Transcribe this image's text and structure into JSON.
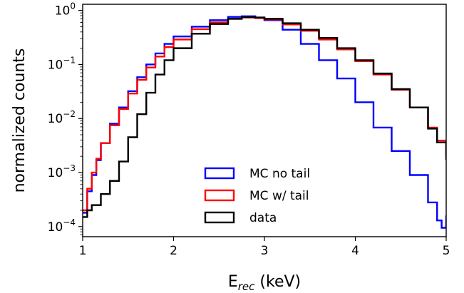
{
  "chart_data": {
    "type": "line",
    "drawstyle": "steps",
    "xlabel_main": "E",
    "xlabel_sub": "rec",
    "xlabel_unit": " (keV)",
    "ylabel": "normalized counts",
    "xlim": [
      1,
      5
    ],
    "ylim": [
      6.5e-05,
      1.3
    ],
    "yscale": "log",
    "grid": false,
    "legend_position": "lower-center",
    "x_ticks": [
      {
        "value": 1,
        "label": "1"
      },
      {
        "value": 2,
        "label": "2"
      },
      {
        "value": 3,
        "label": "3"
      },
      {
        "value": 4,
        "label": "4"
      },
      {
        "value": 5,
        "label": "5"
      }
    ],
    "y_ticks": [
      {
        "value": 1,
        "base": "10",
        "exp": "0"
      },
      {
        "value": 0.1,
        "base": "10",
        "exp": "−1"
      },
      {
        "value": 0.01,
        "base": "10",
        "exp": "−2"
      },
      {
        "value": 0.001,
        "base": "10",
        "exp": "−3"
      },
      {
        "value": 0.0001,
        "base": "10",
        "exp": "−4"
      }
    ],
    "series": [
      {
        "name": "MC no tail",
        "color": "#0000ff",
        "x": [
          1.0,
          1.05,
          1.1,
          1.15,
          1.2,
          1.3,
          1.4,
          1.5,
          1.6,
          1.7,
          1.8,
          1.9,
          2.0,
          2.2,
          2.4,
          2.6,
          2.75,
          2.9,
          3.0,
          3.2,
          3.4,
          3.6,
          3.8,
          4.0,
          4.2,
          4.4,
          4.6,
          4.8,
          4.9,
          4.95,
          5.0
        ],
        "y": [
          0.00018,
          0.00045,
          0.0009,
          0.0017,
          0.0035,
          0.008,
          0.016,
          0.032,
          0.058,
          0.1,
          0.16,
          0.24,
          0.33,
          0.5,
          0.66,
          0.76,
          0.78,
          0.74,
          0.66,
          0.44,
          0.24,
          0.12,
          0.055,
          0.02,
          0.0068,
          0.0025,
          0.0009,
          0.00028,
          0.00013,
          9.5e-05,
          0.00016
        ]
      },
      {
        "name": "MC w/ tail",
        "color": "#ff0000",
        "x": [
          1.0,
          1.05,
          1.1,
          1.15,
          1.2,
          1.3,
          1.4,
          1.5,
          1.6,
          1.7,
          1.8,
          1.9,
          2.0,
          2.2,
          2.4,
          2.6,
          2.75,
          2.9,
          3.0,
          3.2,
          3.4,
          3.6,
          3.8,
          4.0,
          4.2,
          4.4,
          4.6,
          4.8,
          4.9,
          5.0
        ],
        "y": [
          0.0002,
          0.0005,
          0.001,
          0.0018,
          0.0035,
          0.0075,
          0.015,
          0.029,
          0.052,
          0.088,
          0.14,
          0.21,
          0.29,
          0.45,
          0.6,
          0.7,
          0.74,
          0.72,
          0.68,
          0.55,
          0.42,
          0.29,
          0.19,
          0.115,
          0.065,
          0.034,
          0.016,
          0.0068,
          0.0039,
          0.0021
        ]
      },
      {
        "name": "data",
        "color": "#000000",
        "x": [
          1.0,
          1.05,
          1.1,
          1.2,
          1.3,
          1.4,
          1.5,
          1.6,
          1.7,
          1.8,
          1.9,
          2.0,
          2.2,
          2.4,
          2.6,
          2.75,
          2.9,
          3.0,
          3.2,
          3.4,
          3.6,
          3.8,
          4.0,
          4.2,
          4.4,
          4.6,
          4.8,
          4.9,
          5.0
        ],
        "y": [
          0.00015,
          0.0002,
          0.00025,
          0.0004,
          0.0007,
          0.0016,
          0.0045,
          0.012,
          0.03,
          0.065,
          0.12,
          0.2,
          0.37,
          0.56,
          0.7,
          0.75,
          0.74,
          0.7,
          0.58,
          0.44,
          0.31,
          0.2,
          0.12,
          0.068,
          0.035,
          0.016,
          0.0065,
          0.0036,
          0.0017
        ]
      }
    ]
  }
}
